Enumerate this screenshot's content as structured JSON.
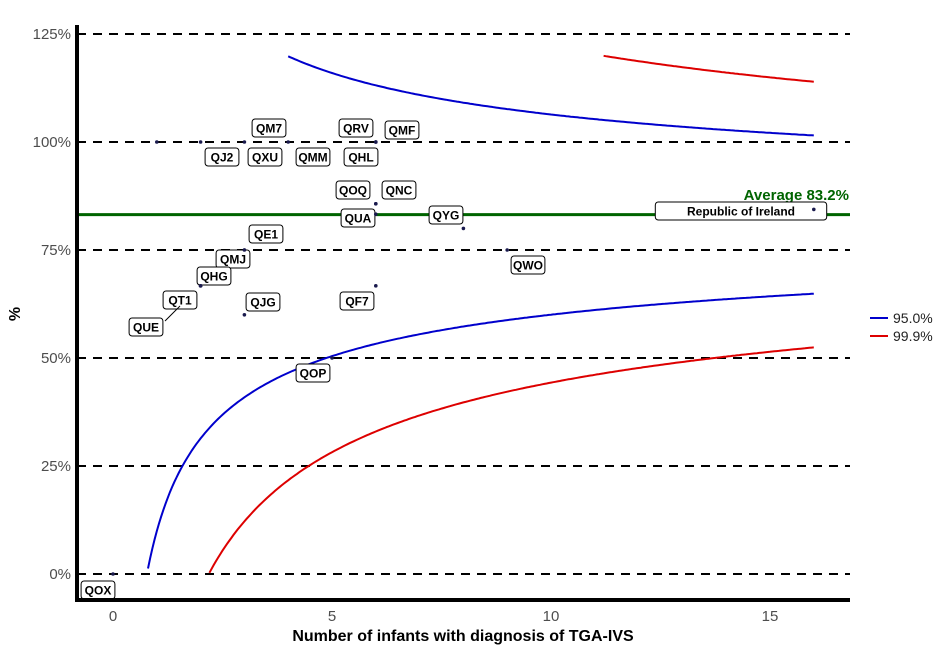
{
  "chart_data": {
    "type": "scatter",
    "subtype": "funnel",
    "xlabel": "Number of infants with diagnosis of TGA-IVS",
    "ylabel": "%",
    "xlim": [
      -0.8,
      16.8
    ],
    "ylim": [
      -5,
      127
    ],
    "xticks": [
      0,
      5,
      10,
      15
    ],
    "xtick_labels": [
      "0",
      "5",
      "10",
      "15"
    ],
    "yticks": [
      0,
      25,
      50,
      75,
      100,
      125
    ],
    "ytick_labels": [
      "0%",
      "25%",
      "50%",
      "75%",
      "100%",
      "125%"
    ],
    "average": 83.2,
    "average_label": "Average 83.2%",
    "average_color": "#006400",
    "limits": [
      {
        "name": "95.0%",
        "z": 1.96,
        "color": "#0000CC"
      },
      {
        "name": "99.9%",
        "z": 3.29,
        "color": "#DD0000"
      }
    ],
    "limit_x_max": 16,
    "limit_y_cap": 120,
    "legend_position": "right",
    "points": [
      {
        "label": "QOX",
        "x": 0,
        "y": 0
      },
      {
        "label": "QJ2",
        "x": 1,
        "y": 100
      },
      {
        "label": "QXU",
        "x": 2,
        "y": 100
      },
      {
        "label": "QM7",
        "x": 3,
        "y": 100
      },
      {
        "label": "QMM",
        "x": 4,
        "y": 100
      },
      {
        "label": "QRV",
        "x": 6,
        "y": 100
      },
      {
        "label": "QHL",
        "x": 6,
        "y": 100
      },
      {
        "label": "QMF",
        "x": 6,
        "y": 100
      },
      {
        "label": "QOQ",
        "x": 6,
        "y": 85.7
      },
      {
        "label": "QNC",
        "x": 6,
        "y": 85.7
      },
      {
        "label": "QUA",
        "x": 6,
        "y": 83.3
      },
      {
        "label": "QYG",
        "x": 8,
        "y": 80
      },
      {
        "label": "QE1",
        "x": 3,
        "y": 75
      },
      {
        "label": "QMJ",
        "x": 3,
        "y": 75
      },
      {
        "label": "QWO",
        "x": 9,
        "y": 75
      },
      {
        "label": "QHG",
        "x": 2,
        "y": 66.7
      },
      {
        "label": "QT1",
        "x": 2,
        "y": 66.7
      },
      {
        "label": "QUE",
        "x": 2,
        "y": 66.7
      },
      {
        "label": "QF7",
        "x": 6,
        "y": 66.7
      },
      {
        "label": "QJG",
        "x": 3,
        "y": 60
      },
      {
        "label": "QOP",
        "x": 5,
        "y": 50
      },
      {
        "label": "Republic of Ireland",
        "x": 16,
        "y": 84.4
      }
    ]
  }
}
